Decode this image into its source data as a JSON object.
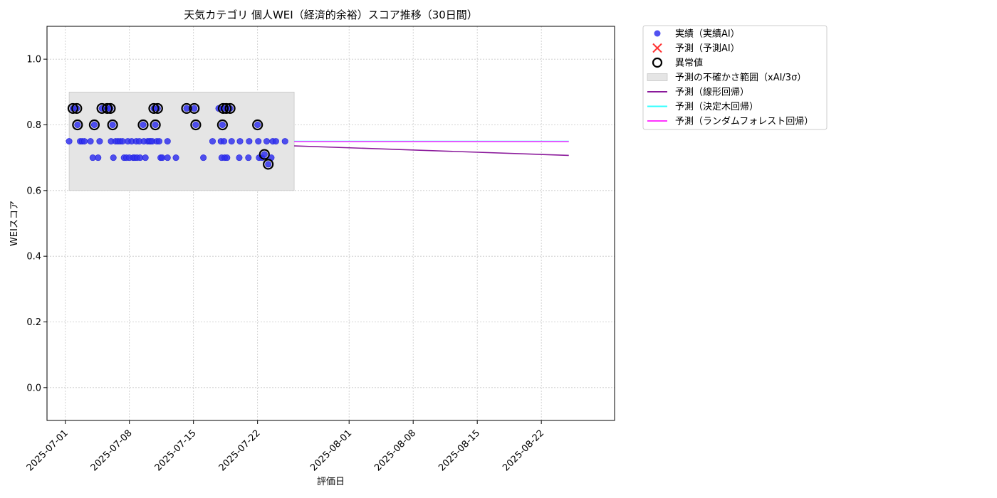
{
  "chart_data": {
    "type": "scatter",
    "title": "天気カテゴリ 個人WEI（経済的余裕）スコア推移（30日間）",
    "xlabel": "評価日",
    "ylabel": "WEIスコア",
    "xlim": [
      "2025-06-29",
      "2025-08-30"
    ],
    "ylim": [
      -0.1,
      1.1
    ],
    "x_ticks": [
      "2025-07-01",
      "2025-07-08",
      "2025-07-15",
      "2025-07-22",
      "2025-08-01",
      "2025-08-08",
      "2025-08-15",
      "2025-08-22"
    ],
    "y_ticks": [
      0.0,
      0.2,
      0.4,
      0.6,
      0.8,
      1.0
    ],
    "y_tick_labels": [
      "0.0",
      "0.2",
      "0.4",
      "0.6",
      "0.8",
      "1.0"
    ],
    "grid": true,
    "legend_position": "outside-top-right",
    "uncertainty_band": {
      "name": "予測の不確かさ範囲（xAI/3σ）",
      "x_start": "2025-07-01T10:00",
      "x_end": "2025-07-26T00:00",
      "y_low": 0.6,
      "y_high": 0.9,
      "color": "#e5e5e5"
    },
    "actual": {
      "name": "実績（実績AI）",
      "color": "#3333ee",
      "points": [
        [
          "2025-07-01T10:00",
          0.75
        ],
        [
          "2025-07-01T20:00",
          0.85
        ],
        [
          "2025-07-02T06:00",
          0.85
        ],
        [
          "2025-07-02T08:00",
          0.8
        ],
        [
          "2025-07-02T15:00",
          0.75
        ],
        [
          "2025-07-02T20:00",
          0.75
        ],
        [
          "2025-07-03T02:00",
          0.75
        ],
        [
          "2025-07-03T18:00",
          0.75
        ],
        [
          "2025-07-04T00:00",
          0.7
        ],
        [
          "2025-07-04T04:00",
          0.8
        ],
        [
          "2025-07-04T14:00",
          0.7
        ],
        [
          "2025-07-04T18:00",
          0.75
        ],
        [
          "2025-07-05T00:00",
          0.85
        ],
        [
          "2025-07-05T14:00",
          0.85
        ],
        [
          "2025-07-05T22:00",
          0.85
        ],
        [
          "2025-07-06T00:00",
          0.75
        ],
        [
          "2025-07-06T04:00",
          0.8
        ],
        [
          "2025-07-06T06:00",
          0.7
        ],
        [
          "2025-07-06T12:00",
          0.75
        ],
        [
          "2025-07-06T18:00",
          0.75
        ],
        [
          "2025-07-07T00:00",
          0.75
        ],
        [
          "2025-07-07T06:00",
          0.75
        ],
        [
          "2025-07-07T10:00",
          0.7
        ],
        [
          "2025-07-07T16:00",
          0.7
        ],
        [
          "2025-07-07T20:00",
          0.75
        ],
        [
          "2025-07-08T00:00",
          0.7
        ],
        [
          "2025-07-08T06:00",
          0.75
        ],
        [
          "2025-07-08T10:00",
          0.7
        ],
        [
          "2025-07-08T14:00",
          0.7
        ],
        [
          "2025-07-08T18:00",
          0.75
        ],
        [
          "2025-07-08T20:00",
          0.7
        ],
        [
          "2025-07-09T02:00",
          0.75
        ],
        [
          "2025-07-09T04:00",
          0.7
        ],
        [
          "2025-07-09T12:00",
          0.8
        ],
        [
          "2025-07-09T14:00",
          0.75
        ],
        [
          "2025-07-09T18:00",
          0.7
        ],
        [
          "2025-07-10T00:00",
          0.75
        ],
        [
          "2025-07-10T04:00",
          0.75
        ],
        [
          "2025-07-10T08:00",
          0.75
        ],
        [
          "2025-07-10T12:00",
          0.75
        ],
        [
          "2025-07-10T16:00",
          0.85
        ],
        [
          "2025-07-10T20:00",
          0.8
        ],
        [
          "2025-07-11T00:00",
          0.75
        ],
        [
          "2025-07-11T02:00",
          0.85
        ],
        [
          "2025-07-11T06:00",
          0.75
        ],
        [
          "2025-07-11T10:00",
          0.7
        ],
        [
          "2025-07-11T14:00",
          0.7
        ],
        [
          "2025-07-12T04:00",
          0.7
        ],
        [
          "2025-07-12T04:00",
          0.75
        ],
        [
          "2025-07-13T02:00",
          0.7
        ],
        [
          "2025-07-14T06:00",
          0.85
        ],
        [
          "2025-07-15T02:00",
          0.85
        ],
        [
          "2025-07-15T06:00",
          0.8
        ],
        [
          "2025-07-16T02:00",
          0.7
        ],
        [
          "2025-07-17T02:00",
          0.75
        ],
        [
          "2025-07-17T18:00",
          0.85
        ],
        [
          "2025-07-18T00:00",
          0.75
        ],
        [
          "2025-07-18T02:00",
          0.7
        ],
        [
          "2025-07-18T04:00",
          0.8
        ],
        [
          "2025-07-18T06:00",
          0.85
        ],
        [
          "2025-07-18T08:00",
          0.75
        ],
        [
          "2025-07-18T10:00",
          0.7
        ],
        [
          "2025-07-18T14:00",
          0.85
        ],
        [
          "2025-07-18T16:00",
          0.7
        ],
        [
          "2025-07-19T00:00",
          0.85
        ],
        [
          "2025-07-19T04:00",
          0.75
        ],
        [
          "2025-07-20T00:00",
          0.7
        ],
        [
          "2025-07-20T02:00",
          0.75
        ],
        [
          "2025-07-21T00:00",
          0.7
        ],
        [
          "2025-07-21T02:00",
          0.75
        ],
        [
          "2025-07-22T00:00",
          0.8
        ],
        [
          "2025-07-22T02:00",
          0.75
        ],
        [
          "2025-07-22T04:00",
          0.7
        ],
        [
          "2025-07-22T12:00",
          0.7
        ],
        [
          "2025-07-22T18:00",
          0.71
        ],
        [
          "2025-07-23T00:00",
          0.75
        ],
        [
          "2025-07-23T04:00",
          0.68
        ],
        [
          "2025-07-23T12:00",
          0.7
        ],
        [
          "2025-07-23T16:00",
          0.75
        ],
        [
          "2025-07-24T00:00",
          0.75
        ],
        [
          "2025-07-25T00:00",
          0.75
        ]
      ]
    },
    "predicted_points": {
      "name": "予測（予測AI）",
      "color": "#ff3333",
      "points": []
    },
    "outliers": {
      "name": "異常値",
      "color": "#000000",
      "points": [
        [
          "2025-07-01T20:00",
          0.85
        ],
        [
          "2025-07-02T06:00",
          0.85
        ],
        [
          "2025-07-02T08:00",
          0.8
        ],
        [
          "2025-07-04T04:00",
          0.8
        ],
        [
          "2025-07-05T00:00",
          0.85
        ],
        [
          "2025-07-05T14:00",
          0.85
        ],
        [
          "2025-07-05T22:00",
          0.85
        ],
        [
          "2025-07-06T04:00",
          0.8
        ],
        [
          "2025-07-09T12:00",
          0.8
        ],
        [
          "2025-07-10T16:00",
          0.85
        ],
        [
          "2025-07-10T20:00",
          0.8
        ],
        [
          "2025-07-11T02:00",
          0.85
        ],
        [
          "2025-07-14T06:00",
          0.85
        ],
        [
          "2025-07-15T02:00",
          0.85
        ],
        [
          "2025-07-15T06:00",
          0.8
        ],
        [
          "2025-07-18T04:00",
          0.8
        ],
        [
          "2025-07-18T06:00",
          0.85
        ],
        [
          "2025-07-18T14:00",
          0.85
        ],
        [
          "2025-07-19T00:00",
          0.85
        ],
        [
          "2025-07-22T00:00",
          0.8
        ],
        [
          "2025-07-22T18:00",
          0.71
        ],
        [
          "2025-07-23T04:00",
          0.68
        ]
      ]
    },
    "forecast_lines": [
      {
        "name": "予測（線形回帰）",
        "color": "#8b1a9b",
        "x": [
          "2025-07-26",
          "2025-08-25"
        ],
        "y": [
          0.736,
          0.707
        ]
      },
      {
        "name": "予測（決定木回帰）",
        "color": "#33ffff",
        "x": [
          "2025-07-26",
          "2025-08-25"
        ],
        "y": [
          0.75,
          0.75
        ]
      },
      {
        "name": "予測（ランダムフォレスト回帰）",
        "color": "#ff33ff",
        "x": [
          "2025-07-26",
          "2025-08-25"
        ],
        "y": [
          0.749,
          0.749
        ]
      }
    ]
  }
}
